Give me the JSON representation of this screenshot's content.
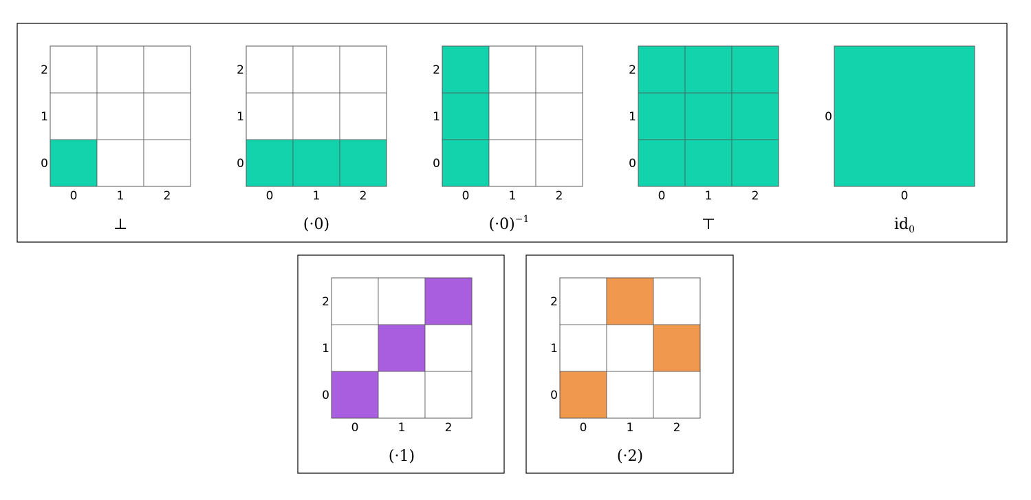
{
  "colors": {
    "teal": "#13d3ad",
    "purple": "#a95ddf",
    "orange": "#f0984e",
    "empty": "#ffffff"
  },
  "relations": [
    {
      "id": "bottom",
      "caption": "⊥",
      "caption_sup": "",
      "caption_sub": "",
      "size": 3,
      "row_labels": [
        "0",
        "1",
        "2"
      ],
      "col_labels": [
        "0",
        "1",
        "2"
      ],
      "color": "teal",
      "filled": [
        [
          0,
          0
        ]
      ]
    },
    {
      "id": "dot0",
      "caption": "(·0)",
      "caption_sup": "",
      "caption_sub": "",
      "size": 3,
      "row_labels": [
        "0",
        "1",
        "2"
      ],
      "col_labels": [
        "0",
        "1",
        "2"
      ],
      "color": "teal",
      "filled": [
        [
          0,
          0
        ],
        [
          1,
          0
        ],
        [
          2,
          0
        ]
      ]
    },
    {
      "id": "dot0-inv",
      "caption": "(·0)",
      "caption_sup": "−1",
      "caption_sub": "",
      "size": 3,
      "row_labels": [
        "0",
        "1",
        "2"
      ],
      "col_labels": [
        "0",
        "1",
        "2"
      ],
      "color": "teal",
      "filled": [
        [
          0,
          0
        ],
        [
          0,
          1
        ],
        [
          0,
          2
        ]
      ]
    },
    {
      "id": "top",
      "caption": "⊤",
      "caption_sup": "",
      "caption_sub": "",
      "size": 3,
      "row_labels": [
        "0",
        "1",
        "2"
      ],
      "col_labels": [
        "0",
        "1",
        "2"
      ],
      "color": "teal",
      "filled": [
        [
          0,
          0
        ],
        [
          1,
          0
        ],
        [
          2,
          0
        ],
        [
          0,
          1
        ],
        [
          1,
          1
        ],
        [
          2,
          1
        ],
        [
          0,
          2
        ],
        [
          1,
          2
        ],
        [
          2,
          2
        ]
      ]
    },
    {
      "id": "id0",
      "caption": "id",
      "caption_sup": "",
      "caption_sub": "0",
      "size": 1,
      "row_labels": [
        "0"
      ],
      "col_labels": [
        "0"
      ],
      "color": "teal",
      "filled": [
        [
          0,
          0
        ]
      ]
    },
    {
      "id": "dot1",
      "caption": "(·1)",
      "caption_sup": "",
      "caption_sub": "",
      "size": 3,
      "row_labels": [
        "0",
        "1",
        "2"
      ],
      "col_labels": [
        "0",
        "1",
        "2"
      ],
      "color": "purple",
      "filled": [
        [
          0,
          0
        ],
        [
          1,
          1
        ],
        [
          2,
          2
        ]
      ]
    },
    {
      "id": "dot2",
      "caption": "(·2)",
      "caption_sup": "",
      "caption_sub": "",
      "size": 3,
      "row_labels": [
        "0",
        "1",
        "2"
      ],
      "col_labels": [
        "0",
        "1",
        "2"
      ],
      "color": "orange",
      "filled": [
        [
          0,
          0
        ],
        [
          2,
          1
        ],
        [
          1,
          2
        ]
      ]
    }
  ]
}
